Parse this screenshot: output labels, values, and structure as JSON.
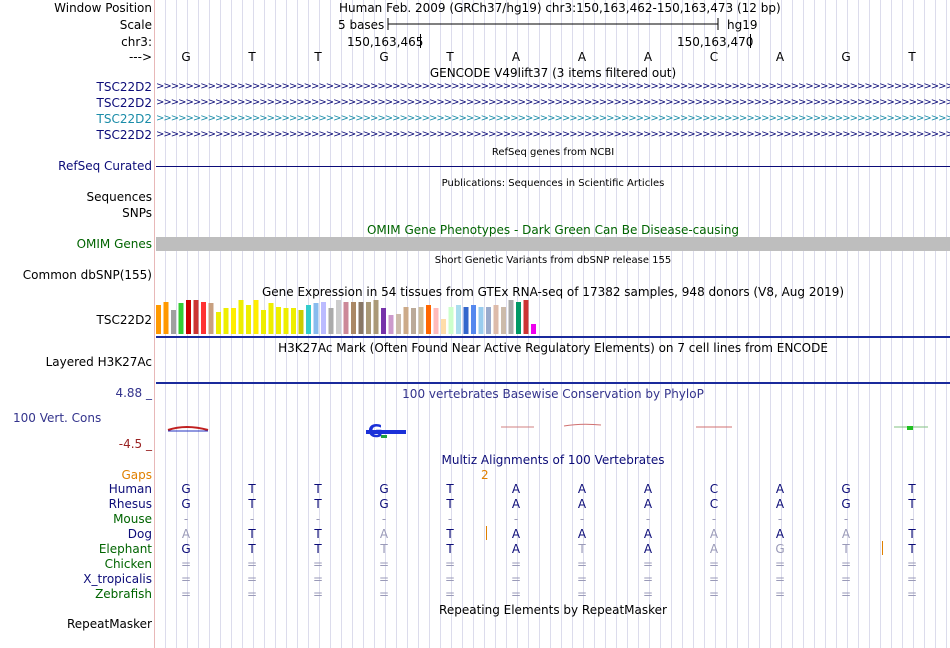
{
  "header": {
    "window_position_label": "Window Position",
    "assembly_and_position": "Human Feb. 2009 (GRCh37/hg19)   chr3:150,163,462-150,163,473 (12 bp)",
    "scale_label": "Scale",
    "scale_bases": "5 bases",
    "scale_db": "hg19",
    "chrom_label": "chr3:",
    "tick_left": "150,163,465",
    "tick_right": "150,163,470",
    "strand_arrow": "--->",
    "bases": [
      "G",
      "T",
      "T",
      "G",
      "T",
      "A",
      "A",
      "A",
      "C",
      "A",
      "G",
      "T"
    ]
  },
  "gencode": {
    "title": "GENCODE V49lift37 (3 items filtered out)",
    "genes": [
      {
        "label": "TSC22D2",
        "color": "#0c0c78"
      },
      {
        "label": "TSC22D2",
        "color": "#0c0c78"
      },
      {
        "label": "TSC22D2",
        "color": "#1a8ca8"
      },
      {
        "label": "TSC22D2",
        "color": "#0c0c78"
      }
    ]
  },
  "refseq": {
    "label": "RefSeq Curated",
    "title": "RefSeq genes from NCBI"
  },
  "publications": {
    "title": "Publications: Sequences in Scientific Articles",
    "label_sequences": "Sequences",
    "label_snps": "SNPs"
  },
  "omim": {
    "title": "OMIM Gene Phenotypes - Dark Green Can Be Disease-causing",
    "label": "OMIM Genes",
    "color": "#006400",
    "bar_color": "#bebebe"
  },
  "dbsnp": {
    "title": "Short Genetic Variants from dbSNP release 155",
    "label": "Common dbSNP(155)"
  },
  "gtex": {
    "title": "Gene Expression in 54 tissues from GTEx RNA-seq of 17382 samples, 948 donors (V8, Aug 2019)",
    "label": "TSC22D2",
    "tissue_colors": [
      "#ff9900",
      "#ff9900",
      "#a0a0a0",
      "#33cc33",
      "#cc0000",
      "#cc3333",
      "#ff3333",
      "#c8a080",
      "#eeee00",
      "#eeee00",
      "#ffee00",
      "#eeee00",
      "#eeee00",
      "#ffee00",
      "#eeee00",
      "#eeee00",
      "#eeee00",
      "#eeee00",
      "#eeee00",
      "#cccc00",
      "#33cccc",
      "#88bbee",
      "#bbbbff",
      "#aaaaaa",
      "#cccccc",
      "#cc8899",
      "#aa8866",
      "#887766",
      "#aa9977",
      "#aa9977",
      "#7733aa",
      "#cc99cc",
      "#ccbbaa",
      "#ccaa88",
      "#bbaa99",
      "#ccbb99",
      "#ff6600",
      "#ffbbbb",
      "#ffddaa",
      "#ccffcc",
      "#aaddee",
      "#3366cc",
      "#5588ee",
      "#99ccee",
      "#99aacc",
      "#ddbbaa",
      "#ccbbaa",
      "#aaaaaa",
      "#009966",
      "#cc3333",
      "#ee00ee"
    ],
    "tissue_values": [
      0.85,
      0.95,
      0.7,
      0.9,
      1.0,
      1.0,
      0.95,
      0.9,
      0.65,
      0.75,
      0.75,
      1.0,
      0.85,
      1.0,
      0.7,
      0.9,
      0.8,
      0.75,
      0.75,
      0.7,
      0.85,
      0.9,
      0.95,
      0.75,
      1.0,
      0.95,
      0.95,
      0.95,
      0.95,
      1.0,
      0.75,
      0.55,
      0.6,
      0.8,
      0.75,
      0.8,
      0.85,
      0.75,
      0.45,
      0.8,
      0.85,
      0.8,
      0.85,
      0.8,
      0.8,
      0.85,
      0.8,
      1.0,
      0.95,
      1.0,
      0.3
    ]
  },
  "h3k27ac": {
    "title": "H3K27Ac Mark (Often Found Near Active Regulatory Elements) on 7 cell lines from ENCODE",
    "label": "Layered H3K27Ac",
    "line_color": "#1a2a9c"
  },
  "phylop": {
    "title": "100 vertebrates Basewise Conservation by PhyloP",
    "label": "100 Vert. Cons",
    "max_label": "4.88 _",
    "min_label": "-4.5 _",
    "title_color": "#33338c",
    "max_color": "#33338c",
    "min_color": "#992222"
  },
  "multiz": {
    "title": "Multiz Alignments of 100 Vertebrates",
    "gaps_label": "Gaps",
    "gap_count": "2",
    "gaps_color": "#e08000",
    "species": [
      {
        "name": "Human",
        "color": "#0c0c78",
        "bases": [
          "G",
          "T",
          "T",
          "G",
          "T",
          "A",
          "A",
          "A",
          "C",
          "A",
          "G",
          "T"
        ],
        "faded": [
          false,
          false,
          false,
          false,
          false,
          false,
          false,
          false,
          false,
          false,
          false,
          false
        ]
      },
      {
        "name": "Rhesus",
        "color": "#0c0c78",
        "bases": [
          "G",
          "T",
          "T",
          "G",
          "T",
          "A",
          "A",
          "A",
          "C",
          "A",
          "G",
          "T"
        ],
        "faded": [
          false,
          false,
          false,
          false,
          false,
          false,
          false,
          false,
          false,
          false,
          false,
          false
        ]
      },
      {
        "name": "Mouse",
        "color": "#006400",
        "bases": [
          "-",
          "-",
          "-",
          "-",
          "-",
          "-",
          "-",
          "-",
          "-",
          "-",
          "-",
          "-"
        ],
        "faded": [
          true,
          true,
          true,
          true,
          true,
          true,
          true,
          true,
          true,
          true,
          true,
          true
        ]
      },
      {
        "name": "Dog",
        "color": "#0c0c78",
        "bases": [
          "A",
          "T",
          "T",
          "A",
          "T",
          "A",
          "A",
          "A",
          "A",
          "A",
          "A",
          "T"
        ],
        "faded": [
          true,
          false,
          false,
          true,
          false,
          false,
          false,
          false,
          true,
          false,
          true,
          false
        ]
      },
      {
        "name": "Elephant",
        "color": "#006400",
        "bases": [
          "G",
          "T",
          "T",
          "T",
          "T",
          "A",
          "T",
          "A",
          "A",
          "G",
          "T",
          "T"
        ],
        "faded": [
          false,
          false,
          false,
          true,
          false,
          false,
          true,
          false,
          true,
          true,
          true,
          false
        ]
      },
      {
        "name": "Chicken",
        "color": "#006400",
        "bases": [
          "=",
          "=",
          "=",
          "=",
          "=",
          "=",
          "=",
          "=",
          "=",
          "=",
          "=",
          "="
        ],
        "faded": [
          true,
          true,
          true,
          true,
          true,
          true,
          true,
          true,
          true,
          true,
          true,
          true
        ]
      },
      {
        "name": "X_tropicalis",
        "color": "#0c0c78",
        "bases": [
          "=",
          "=",
          "=",
          "=",
          "=",
          "=",
          "=",
          "=",
          "=",
          "=",
          "=",
          "="
        ],
        "faded": [
          true,
          true,
          true,
          true,
          true,
          true,
          true,
          true,
          true,
          true,
          true,
          true
        ]
      },
      {
        "name": "Zebrafish",
        "color": "#006400",
        "bases": [
          "=",
          "=",
          "=",
          "=",
          "=",
          "=",
          "=",
          "=",
          "=",
          "=",
          "=",
          "="
        ],
        "faded": [
          true,
          true,
          true,
          true,
          true,
          true,
          true,
          true,
          true,
          true,
          true,
          true
        ]
      }
    ]
  },
  "repeatmasker": {
    "title": "Repeating Elements by RepeatMasker",
    "label": "RepeatMasker"
  }
}
